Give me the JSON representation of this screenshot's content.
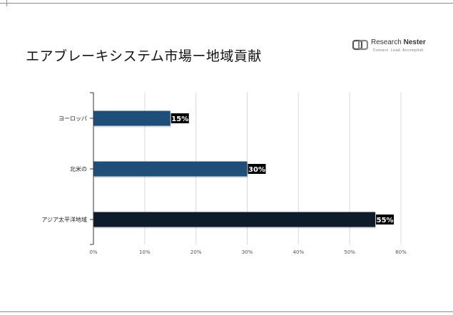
{
  "title": "エアブレーキシステム市場ー地域貢献",
  "logo": {
    "name_part1": "Research",
    "name_part2": "Nester",
    "tagline": "Connect. Lead. Accomplish"
  },
  "colors": {
    "bar_europe": "#1f4e79",
    "bar_north_america": "#1f4e79",
    "bar_asia_pacific": "#0d1b2a",
    "label_bg": "#000000",
    "grid": "#d9d9d9",
    "axis": "#333333"
  },
  "chart_data": {
    "type": "bar",
    "orientation": "horizontal",
    "categories": [
      "ヨーロッパ",
      "北米の",
      "アジア太平洋地域"
    ],
    "values": [
      15,
      30,
      55
    ],
    "data_labels": [
      "15%",
      "30%",
      "55%"
    ],
    "xlim": [
      0,
      60
    ],
    "x_ticks": [
      "0%",
      "10%",
      "20%",
      "30%",
      "40%",
      "50%",
      "60%"
    ],
    "grid": true,
    "legend": false
  }
}
